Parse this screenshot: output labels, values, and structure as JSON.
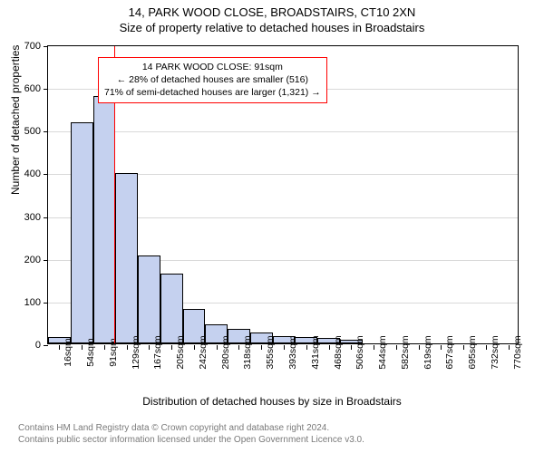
{
  "title": {
    "main": "14, PARK WOOD CLOSE, BROADSTAIRS, CT10 2XN",
    "sub": "Size of property relative to detached houses in Broadstairs"
  },
  "chart": {
    "type": "histogram",
    "ylabel": "Number of detached properties",
    "xlabel": "Distribution of detached houses by size in Broadstairs",
    "ylim": [
      0,
      700
    ],
    "ytick_step": 100,
    "y_axis_fontsize": 12,
    "x_axis_fontsize": 12,
    "tick_fontsize": 11,
    "background_color": "#ffffff",
    "border_color": "#000000",
    "grid_color": "#d9d9d9",
    "bar_fill": "#c5d1ef",
    "bar_stroke": "#000000",
    "bar_stroke_width": 0.5,
    "highlight_color": "#ff0000",
    "x_categories": [
      "16sqm",
      "54sqm",
      "91sqm",
      "129sqm",
      "167sqm",
      "205sqm",
      "242sqm",
      "280sqm",
      "318sqm",
      "355sqm",
      "393sqm",
      "431sqm",
      "468sqm",
      "506sqm",
      "544sqm",
      "582sqm",
      "619sqm",
      "657sqm",
      "695sqm",
      "732sqm",
      "770sqm"
    ],
    "values": [
      15,
      517,
      580,
      398,
      205,
      164,
      80,
      45,
      34,
      25,
      18,
      14,
      12,
      8,
      0,
      0,
      0,
      0,
      0,
      0,
      0
    ],
    "highlight_index": 2,
    "bar_gap_ratio": 0.0
  },
  "annotation": {
    "line1": "14 PARK WOOD CLOSE: 91sqm",
    "line2": "← 28% of detached houses are smaller (516)",
    "line3": "71% of semi-detached houses are larger (1,321) →",
    "border_color": "#ff0000",
    "bg_color": "#ffffff",
    "fontsize": 10.5
  },
  "footer": {
    "line1": "Contains HM Land Registry data © Crown copyright and database right 2024.",
    "line2": "Contains public sector information licensed under the Open Government Licence v3.0.",
    "color": "#7a7a7a",
    "fontsize": 10
  }
}
